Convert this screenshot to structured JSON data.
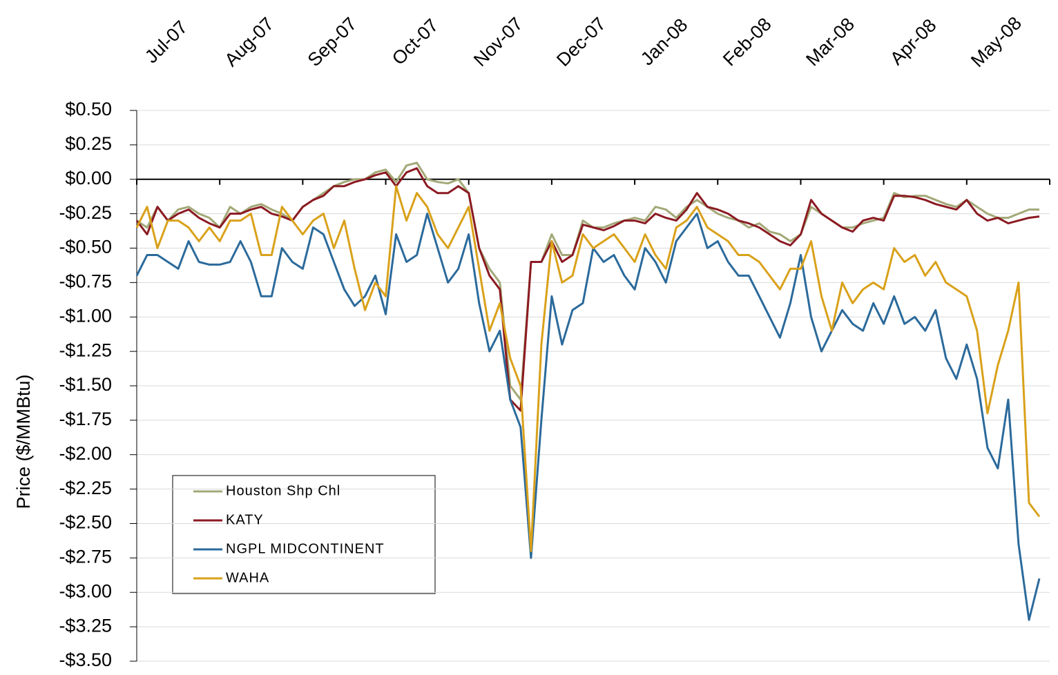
{
  "chart_data": {
    "type": "line",
    "y_label": "Price ($/MMBtu)",
    "categories": [
      "Jul-07",
      null,
      null,
      null,
      null,
      null,
      null,
      null,
      "Aug-07",
      null,
      null,
      null,
      null,
      null,
      null,
      null,
      "Sep-07",
      null,
      null,
      null,
      null,
      null,
      null,
      null,
      "Oct-07",
      null,
      null,
      null,
      null,
      null,
      null,
      null,
      "Nov-07",
      null,
      null,
      null,
      null,
      null,
      null,
      null,
      "Dec-07",
      null,
      null,
      null,
      null,
      null,
      null,
      null,
      "Jan-08",
      null,
      null,
      null,
      null,
      null,
      null,
      null,
      "Feb-08",
      null,
      null,
      null,
      null,
      null,
      null,
      null,
      "Mar-08",
      null,
      null,
      null,
      null,
      null,
      null,
      null,
      "Apr-08",
      null,
      null,
      null,
      null,
      null,
      null,
      null,
      "May-08",
      null,
      null,
      null,
      null,
      null,
      null,
      null
    ],
    "series": [
      {
        "name": "Houston Shp Chl",
        "color": "#a3a877",
        "values": [
          -0.3,
          -0.35,
          -0.2,
          -0.3,
          -0.22,
          -0.2,
          -0.25,
          -0.28,
          -0.35,
          -0.2,
          -0.25,
          -0.2,
          -0.18,
          -0.22,
          -0.25,
          -0.3,
          -0.2,
          -0.15,
          -0.1,
          -0.05,
          -0.02,
          0.0,
          0.0,
          0.05,
          0.07,
          -0.02,
          0.1,
          0.12,
          0.0,
          -0.02,
          -0.03,
          0.0,
          -0.1,
          -0.5,
          -0.65,
          -0.75,
          -1.5,
          -1.6,
          -0.6,
          -0.6,
          -0.4,
          -0.55,
          -0.55,
          -0.3,
          -0.35,
          -0.35,
          -0.32,
          -0.3,
          -0.28,
          -0.3,
          -0.2,
          -0.22,
          -0.28,
          -0.2,
          -0.15,
          -0.2,
          -0.25,
          -0.28,
          -0.3,
          -0.35,
          -0.32,
          -0.38,
          -0.4,
          -0.45,
          -0.4,
          -0.2,
          -0.25,
          -0.3,
          -0.35,
          -0.35,
          -0.32,
          -0.3,
          -0.28,
          -0.1,
          -0.13,
          -0.12,
          -0.12,
          -0.15,
          -0.18,
          -0.2,
          -0.15,
          -0.2,
          -0.25,
          -0.28,
          -0.28,
          -0.25,
          -0.22,
          -0.22
        ]
      },
      {
        "name": "KATY",
        "color": "#8b1a22",
        "values": [
          -0.3,
          -0.4,
          -0.2,
          -0.3,
          -0.25,
          -0.22,
          -0.28,
          -0.32,
          -0.35,
          -0.25,
          -0.25,
          -0.22,
          -0.2,
          -0.25,
          -0.27,
          -0.3,
          -0.2,
          -0.15,
          -0.12,
          -0.05,
          -0.05,
          -0.02,
          0.0,
          0.03,
          0.05,
          -0.05,
          0.05,
          0.08,
          -0.05,
          -0.1,
          -0.1,
          -0.05,
          -0.1,
          -0.5,
          -0.7,
          -0.8,
          -1.6,
          -1.68,
          -0.6,
          -0.6,
          -0.45,
          -0.6,
          -0.55,
          -0.33,
          -0.35,
          -0.37,
          -0.34,
          -0.3,
          -0.3,
          -0.32,
          -0.25,
          -0.28,
          -0.3,
          -0.22,
          -0.1,
          -0.2,
          -0.22,
          -0.25,
          -0.3,
          -0.32,
          -0.35,
          -0.4,
          -0.45,
          -0.48,
          -0.4,
          -0.15,
          -0.25,
          -0.3,
          -0.35,
          -0.38,
          -0.3,
          -0.28,
          -0.3,
          -0.12,
          -0.12,
          -0.13,
          -0.15,
          -0.18,
          -0.2,
          -0.22,
          -0.15,
          -0.25,
          -0.3,
          -0.28,
          -0.32,
          -0.3,
          -0.28,
          -0.27
        ]
      },
      {
        "name": "NGPL MIDCONTINENT",
        "color": "#2b6a9b",
        "values": [
          -0.7,
          -0.55,
          -0.55,
          -0.6,
          -0.65,
          -0.45,
          -0.6,
          -0.62,
          -0.62,
          -0.6,
          -0.45,
          -0.6,
          -0.85,
          -0.85,
          -0.5,
          -0.6,
          -0.65,
          -0.35,
          -0.4,
          -0.6,
          -0.8,
          -0.92,
          -0.85,
          -0.7,
          -0.98,
          -0.4,
          -0.6,
          -0.55,
          -0.25,
          -0.5,
          -0.75,
          -0.65,
          -0.4,
          -0.9,
          -1.25,
          -1.1,
          -1.6,
          -1.8,
          -2.75,
          -1.75,
          -0.85,
          -1.2,
          -0.95,
          -0.9,
          -0.5,
          -0.6,
          -0.55,
          -0.7,
          -0.8,
          -0.5,
          -0.6,
          -0.75,
          -0.45,
          -0.35,
          -0.25,
          -0.5,
          -0.45,
          -0.6,
          -0.7,
          -0.7,
          -0.85,
          -1.0,
          -1.15,
          -0.9,
          -0.55,
          -1.0,
          -1.25,
          -1.1,
          -0.95,
          -1.05,
          -1.1,
          -0.9,
          -1.05,
          -0.85,
          -1.05,
          -1.0,
          -1.1,
          -0.95,
          -1.3,
          -1.45,
          -1.2,
          -1.45,
          -1.95,
          -2.1,
          -1.6,
          -2.65,
          -3.2,
          -2.9
        ]
      },
      {
        "name": "WAHA",
        "color": "#d9a11a",
        "values": [
          -0.35,
          -0.2,
          -0.5,
          -0.3,
          -0.3,
          -0.35,
          -0.45,
          -0.35,
          -0.45,
          -0.3,
          -0.3,
          -0.25,
          -0.55,
          -0.55,
          -0.2,
          -0.3,
          -0.4,
          -0.3,
          -0.25,
          -0.5,
          -0.3,
          -0.65,
          -0.95,
          -0.75,
          -0.85,
          -0.05,
          -0.3,
          -0.1,
          -0.2,
          -0.4,
          -0.5,
          -0.35,
          -0.2,
          -0.65,
          -1.1,
          -0.9,
          -1.3,
          -1.5,
          -2.7,
          -1.2,
          -0.45,
          -0.75,
          -0.7,
          -0.4,
          -0.5,
          -0.45,
          -0.4,
          -0.5,
          -0.6,
          -0.4,
          -0.55,
          -0.65,
          -0.35,
          -0.3,
          -0.2,
          -0.35,
          -0.4,
          -0.45,
          -0.55,
          -0.55,
          -0.6,
          -0.7,
          -0.8,
          -0.65,
          -0.65,
          -0.45,
          -0.85,
          -1.1,
          -0.75,
          -0.9,
          -0.8,
          -0.75,
          -0.8,
          -0.5,
          -0.6,
          -0.55,
          -0.7,
          -0.6,
          -0.75,
          -0.8,
          -0.85,
          -1.1,
          -1.7,
          -1.35,
          -1.1,
          -0.75,
          -2.35,
          -2.45
        ]
      }
    ],
    "ylim": [
      -3.5,
      0.5
    ],
    "yticks": [
      {
        "value": 0.5,
        "label": "$0.50"
      },
      {
        "value": 0.25,
        "label": "$0.25"
      },
      {
        "value": 0,
        "label": "$0.00"
      },
      {
        "value": -0.25,
        "label": "-$0.25"
      },
      {
        "value": -0.5,
        "label": "-$0.50"
      },
      {
        "value": -0.75,
        "label": "-$0.75"
      },
      {
        "value": -1,
        "label": "-$1.00"
      },
      {
        "value": -1.25,
        "label": "-$1.25"
      },
      {
        "value": -1.5,
        "label": "-$1.50"
      },
      {
        "value": -1.75,
        "label": "-$1.75"
      },
      {
        "value": -2,
        "label": "-$2.00"
      },
      {
        "value": -2.25,
        "label": "-$2.25"
      },
      {
        "value": -2.5,
        "label": "-$2.50"
      },
      {
        "value": -2.75,
        "label": "-$2.75"
      },
      {
        "value": -3,
        "label": "-$3.00"
      },
      {
        "value": -3.25,
        "label": "-$3.25"
      },
      {
        "value": -3.5,
        "label": "-$3.50"
      }
    ],
    "grid": true
  }
}
